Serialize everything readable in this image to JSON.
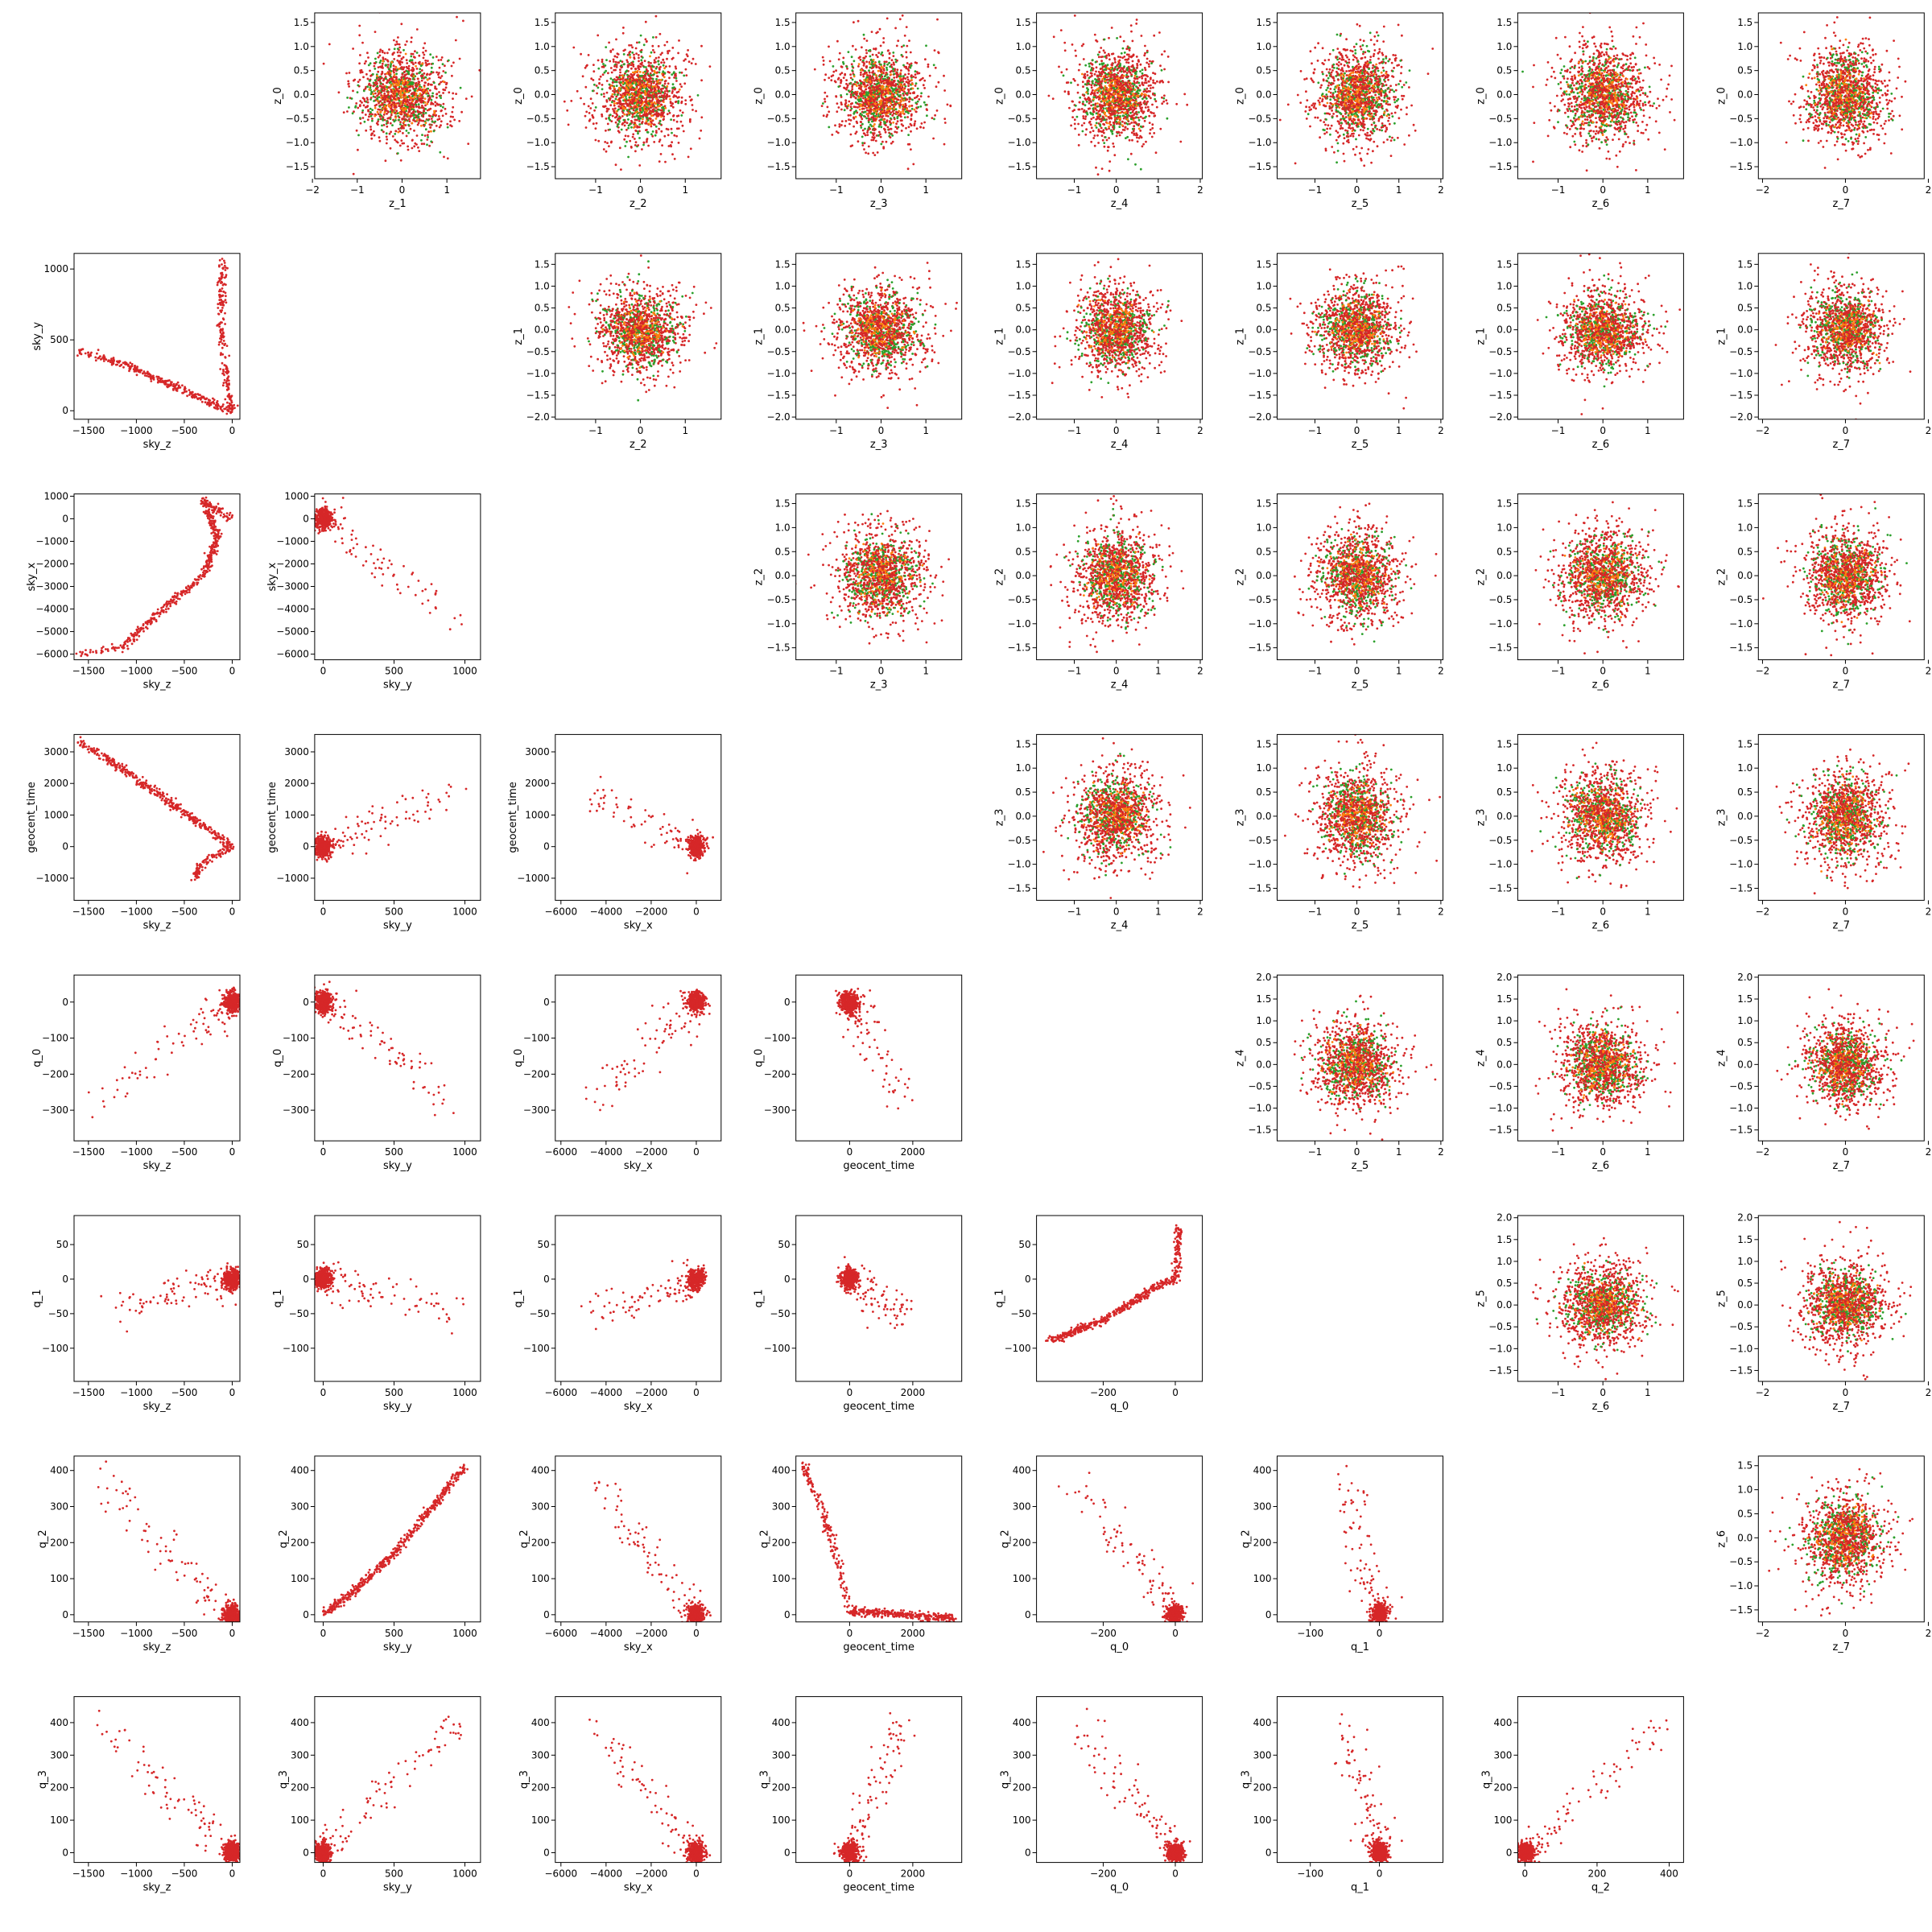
{
  "figure": {
    "grid_size": 8,
    "colors": {
      "primary": "#d62728",
      "secondary": "#2ca02c",
      "blend": "#ff7f0e"
    },
    "labels": {
      "sky_z": "sky_z",
      "sky_y": "sky_y",
      "sky_x": "sky_x",
      "geocent_time": "geocent_time",
      "q_0": "q_0",
      "q_1": "q_1",
      "q_2": "q_2",
      "q_3": "q_3",
      "z_0": "z_0",
      "z_1": "z_1",
      "z_2": "z_2",
      "z_3": "z_3",
      "z_4": "z_4",
      "z_5": "z_5",
      "z_6": "z_6",
      "z_7": "z_7"
    },
    "ticks": {
      "sky_z": {
        "range": [
          -1650,
          80
        ],
        "ticks": [
          -1500,
          -1000,
          -500,
          0
        ],
        "labels": [
          "−1500",
          "−1000",
          "−500",
          "0"
        ]
      },
      "sky_y": {
        "range": [
          -60,
          1110
        ],
        "ticks": [
          0,
          500,
          1000
        ],
        "labels": [
          "0",
          "500",
          "1000"
        ]
      },
      "sky_x": {
        "range": [
          -6250,
          1100
        ],
        "ticks": [
          -6000,
          -5000,
          -4000,
          -3000,
          -2000,
          -1000,
          0,
          1000
        ],
        "labels": [
          "−6000",
          "−5000",
          "−4000",
          "−3000",
          "−2000",
          "−1000",
          "0",
          "1000"
        ]
      },
      "sky_x_h": {
        "range": [
          -6250,
          1100
        ],
        "ticks": [
          -6000,
          -4000,
          -2000,
          0
        ],
        "labels": [
          "−6000",
          "−4000",
          "−2000",
          "0"
        ]
      },
      "geocent_time": {
        "range": [
          -1700,
          3550
        ],
        "ticks": [
          -1000,
          0,
          1000,
          2000,
          3000
        ],
        "labels": [
          "−1000",
          "0",
          "1000",
          "2000",
          "3000"
        ]
      },
      "geocent_time_h": {
        "range": [
          -1700,
          3550
        ],
        "ticks": [
          0,
          2000
        ],
        "labels": [
          "0",
          "2000"
        ]
      },
      "q_0": {
        "range": [
          -385,
          75
        ],
        "ticks": [
          -300,
          -200,
          -100,
          0
        ],
        "labels": [
          "−300",
          "−200",
          "−100",
          "0"
        ]
      },
      "q_0_h": {
        "range": [
          -385,
          75
        ],
        "ticks": [
          -200,
          0
        ],
        "labels": [
          "−200",
          "0"
        ]
      },
      "q_1": {
        "range": [
          -148,
          92
        ],
        "ticks": [
          -100,
          -50,
          0,
          50
        ],
        "labels": [
          "−100",
          "−50",
          "0",
          "50"
        ]
      },
      "q_1_h": {
        "range": [
          -148,
          92
        ],
        "ticks": [
          -100,
          0
        ],
        "labels": [
          "−100",
          "0"
        ]
      },
      "q_2": {
        "range": [
          -20,
          440
        ],
        "ticks": [
          0,
          100,
          200,
          300,
          400
        ],
        "labels": [
          "0",
          "100",
          "200",
          "300",
          "400"
        ]
      },
      "q_2_h": {
        "range": [
          -20,
          440
        ],
        "ticks": [
          0,
          200,
          400
        ],
        "labels": [
          "0",
          "200",
          "400"
        ]
      },
      "q_3": {
        "range": [
          -30,
          480
        ],
        "ticks": [
          0,
          100,
          200,
          300,
          400
        ],
        "labels": [
          "0",
          "100",
          "200",
          "300",
          "400"
        ]
      },
      "z_h1": {
        "range": [
          -1.95,
          1.75
        ],
        "ticks": [
          -2,
          -1,
          0,
          1
        ],
        "labels": [
          "−2",
          "−1",
          "0",
          "1"
        ]
      },
      "z_h2": {
        "range": [
          -1.9,
          1.8
        ],
        "ticks": [
          -1,
          0,
          1
        ],
        "labels": [
          "−1",
          "0",
          "1"
        ]
      },
      "z_h3": {
        "range": [
          -1.9,
          2.05
        ],
        "ticks": [
          -1,
          0,
          1,
          2
        ],
        "labels": [
          "−1",
          "0",
          "1",
          "2"
        ]
      },
      "z_h4": {
        "range": [
          -2.1,
          1.9
        ],
        "ticks": [
          -2,
          -1,
          0,
          1
        ],
        "labels": [
          "−2",
          "−1",
          "0",
          "1"
        ]
      },
      "z_h5": {
        "range": [
          -2.1,
          1.9
        ],
        "ticks": [
          -2,
          0,
          2
        ],
        "labels": [
          "−2",
          "0",
          "2"
        ]
      },
      "z_v1": {
        "range": [
          -1.75,
          1.7
        ],
        "ticks": [
          -1.5,
          -1.0,
          -0.5,
          0.0,
          0.5,
          1.0,
          1.5
        ],
        "labels": [
          "−1.5",
          "−1.0",
          "−0.5",
          "0.0",
          "0.5",
          "1.0",
          "1.5"
        ]
      },
      "z_v2": {
        "range": [
          -2.05,
          1.75
        ],
        "ticks": [
          -2.0,
          -1.5,
          -1.0,
          -0.5,
          0.0,
          0.5,
          1.0,
          1.5
        ],
        "labels": [
          "−2.0",
          "−1.5",
          "−1.0",
          "−0.5",
          "0.0",
          "0.5",
          "1.0",
          "1.5"
        ]
      },
      "z_v3": {
        "range": [
          -1.75,
          2.05
        ],
        "ticks": [
          -1.5,
          -1.0,
          -0.5,
          0.0,
          0.5,
          1.0,
          1.5,
          2.0
        ],
        "labels": [
          "−1.5",
          "−1.0",
          "−0.5",
          "0.0",
          "0.5",
          "1.0",
          "1.5",
          "2.0"
        ]
      }
    },
    "scatter_x_ticks": [
      "z_h1",
      "z_h2",
      "z_h2",
      "z_h3",
      "z_h3",
      "z_h2",
      "z_h5"
    ],
    "scatter_y_ticks": [
      "z_v1",
      "z_v2",
      "z_v1",
      "z_v1",
      "z_v3",
      "z_v3",
      "z_v1"
    ],
    "custom_row_ticks": [
      "sky_y",
      "sky_x",
      "geocent_time",
      "q_0",
      "q_1",
      "q_2",
      "q_3"
    ],
    "custom_col_ticks": [
      "sky_z",
      "sky_y",
      "sky_x_h",
      "geocent_time_h",
      "q_0_h",
      "q_1_h",
      "q_2_h"
    ]
  },
  "chart_data": {
    "type": "scatter",
    "layout": "corner-pair-grid",
    "lower_variables": [
      "sky_z",
      "sky_y",
      "sky_x",
      "geocent_time",
      "q_0",
      "q_1",
      "q_2",
      "q_3"
    ],
    "upper_variables": [
      "z_0",
      "z_1",
      "z_2",
      "z_3",
      "z_4",
      "z_5",
      "z_6",
      "z_7"
    ],
    "lower_panels_description": "row r > col c: y = lower_variables[r], x = lower_variables[c]",
    "upper_panels_description": "row r < col c: y = upper_variables[r], x = upper_variables[c]",
    "upper_distribution": {
      "shape": "isotropic gaussian",
      "mean": [
        0,
        0
      ],
      "std": 0.55,
      "points_per_panel": 1500
    },
    "lower_trends": {
      "geocent_time_vs_sky_z": [
        [
          -1600,
          3350
        ],
        [
          -1150,
          2450
        ],
        [
          -600,
          1300
        ],
        [
          -100,
          200
        ],
        [
          0,
          0
        ],
        [
          -300,
          -500
        ],
        [
          -400,
          -1000
        ]
      ],
      "sky_y_vs_sky_z": [
        [
          -1600,
          420
        ],
        [
          -1100,
          320
        ],
        [
          -600,
          170
        ],
        [
          -150,
          40
        ],
        [
          0,
          0
        ],
        [
          -60,
          250
        ],
        [
          -120,
          600
        ],
        [
          -100,
          1060
        ]
      ],
      "sky_x_vs_sky_z": [
        [
          -1600,
          -6000
        ],
        [
          -1150,
          -5700
        ],
        [
          -800,
          -4300
        ],
        [
          -300,
          -2500
        ],
        [
          -150,
          -800
        ],
        [
          -300,
          800
        ],
        [
          0,
          0
        ]
      ],
      "q_2_vs_geocent_time": [
        [
          -1500,
          420
        ],
        [
          -900,
          300
        ],
        [
          -300,
          120
        ],
        [
          0,
          10
        ],
        [
          1000,
          5
        ],
        [
          3300,
          -10
        ]
      ],
      "q_2_vs_sky_y": [
        [
          0,
          0
        ],
        [
          200,
          60
        ],
        [
          500,
          170
        ],
        [
          1000,
          410
        ]
      ],
      "q_1_vs_q_0": [
        [
          -350,
          -90
        ],
        [
          -200,
          -60
        ],
        [
          -50,
          -10
        ],
        [
          0,
          0
        ],
        [
          10,
          75
        ]
      ]
    }
  }
}
